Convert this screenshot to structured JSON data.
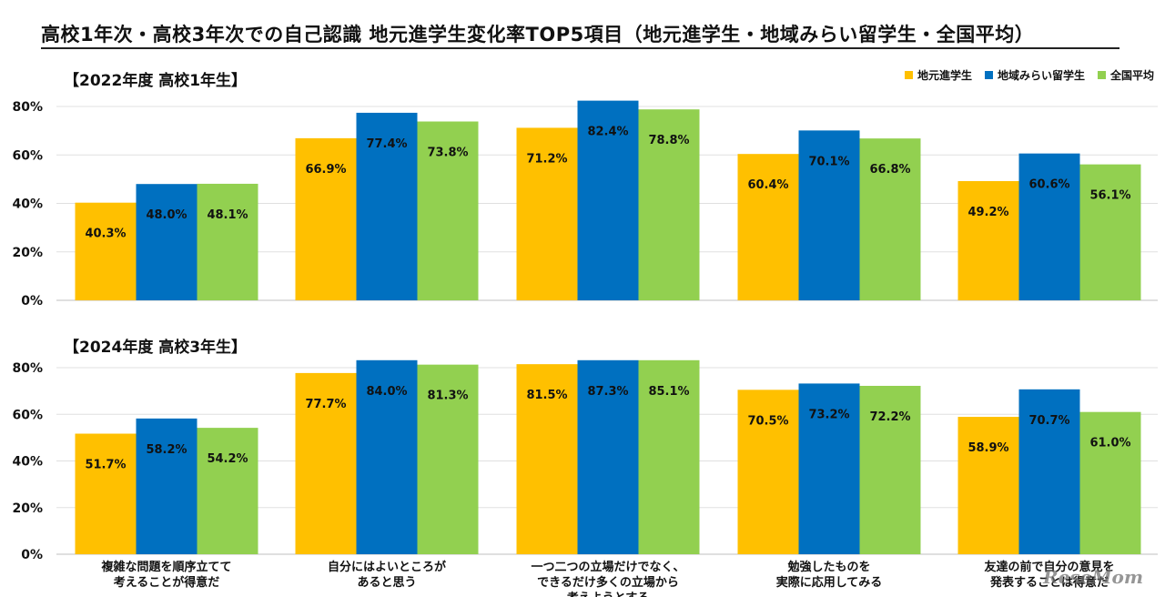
{
  "title": "高校1年次・高校3年次での自己認識 地元進学生変化率TOP5項目（地元進学生・地域みらい留学生・全国平均）",
  "chart_data": [
    {
      "type": "bar",
      "title": "【2022年度 高校1年生】",
      "categories": [
        "複雑な問題を順序立てて考えることが得意だ",
        "自分にはよいところがあると思う",
        "一つ二つの立場だけでなく、できるだけ多くの立場から考えようとする",
        "勉強したものを実際に応用してみる",
        "友達の前で自分の意見を発表することは得意だ"
      ],
      "series": [
        {
          "name": "地元進学生",
          "color": "#FFC000",
          "values": [
            40.3,
            66.9,
            71.2,
            60.4,
            49.2
          ],
          "labels": [
            "40.3%",
            "66.9%",
            "71.2%",
            "60.4%",
            "49.2%"
          ]
        },
        {
          "name": "地域みらい留学生",
          "color": "#0070C0",
          "values": [
            48.0,
            77.4,
            82.4,
            70.1,
            60.6
          ],
          "labels": [
            "48.0%",
            "77.4%",
            "82.4%",
            "70.1%",
            "60.6%"
          ]
        },
        {
          "name": "全国平均",
          "color": "#92D050",
          "values": [
            48.1,
            73.8,
            78.8,
            66.8,
            56.1
          ],
          "labels": [
            "48.1%",
            "73.8%",
            "78.8%",
            "66.8%",
            "56.1%"
          ]
        }
      ],
      "ylim": [
        0,
        80
      ],
      "yticks": [
        "0%",
        "20%",
        "40%",
        "60%",
        "80%"
      ],
      "grid": true
    },
    {
      "type": "bar",
      "title": "【2024年度 高校3年生】",
      "categories": [
        "複雑な問題を順序立てて考えることが得意だ",
        "自分にはよいところがあると思う",
        "一つ二つの立場だけでなく、できるだけ多くの立場から考えようとする",
        "勉強したものを実際に応用してみる",
        "友達の前で自分の意見を発表することは得意だ"
      ],
      "series": [
        {
          "name": "地元進学生",
          "color": "#FFC000",
          "values": [
            51.7,
            77.7,
            81.5,
            70.5,
            58.9
          ],
          "labels": [
            "51.7%",
            "77.7%",
            "81.5%",
            "70.5%",
            "58.9%"
          ]
        },
        {
          "name": "地域みらい留学生",
          "color": "#0070C0",
          "values": [
            58.2,
            84.0,
            87.3,
            73.2,
            70.7
          ],
          "labels": [
            "58.2%",
            "84.0%",
            "87.3%",
            "73.2%",
            "70.7%"
          ]
        },
        {
          "name": "全国平均",
          "color": "#92D050",
          "values": [
            54.2,
            81.3,
            85.1,
            72.2,
            61.0
          ],
          "labels": [
            "54.2%",
            "81.3%",
            "85.1%",
            "72.2%",
            "61.0%"
          ]
        }
      ],
      "ylim": [
        0,
        80
      ],
      "yticks": [
        "0%",
        "20%",
        "40%",
        "60%",
        "80%"
      ],
      "grid": true
    }
  ],
  "category_lines": [
    [
      "複雑な問題を順序立てて",
      "考えることが得意だ"
    ],
    [
      "自分にはよいところが",
      "あると思う"
    ],
    [
      "一つ二つの立場だけでなく、",
      "できるだけ多くの立場から",
      "考えようとする"
    ],
    [
      "勉強したものを",
      "実際に応用してみる"
    ],
    [
      "友達の前で自分の意見を",
      "発表することは得意だ"
    ]
  ],
  "legend": [
    {
      "label": "地元進学生",
      "color": "#FFC000"
    },
    {
      "label": "地域みらい留学生",
      "color": "#0070C0"
    },
    {
      "label": "全国平均",
      "color": "#92D050"
    }
  ],
  "watermark": "ReseMom"
}
